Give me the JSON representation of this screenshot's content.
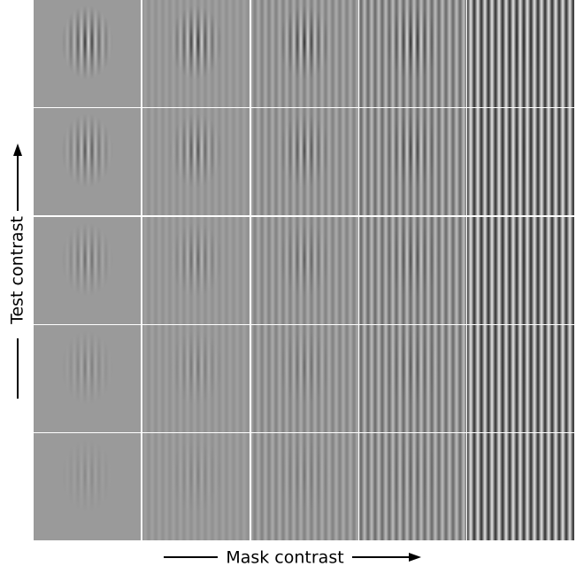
{
  "y_label": "Test contrast",
  "x_label": "Mask contrast"
}
